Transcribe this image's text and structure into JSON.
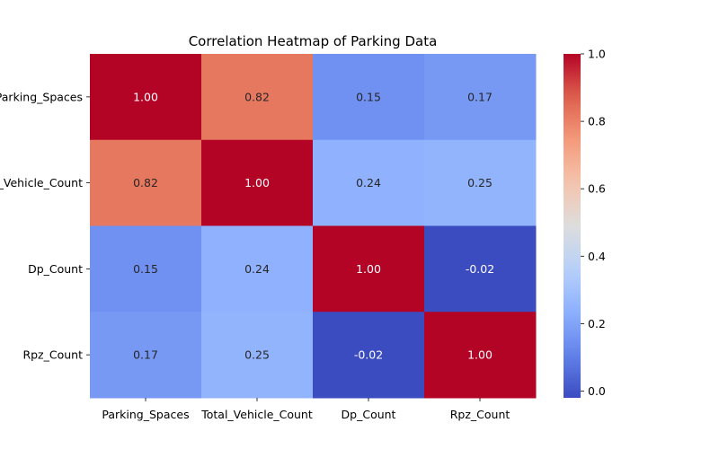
{
  "chart_data": {
    "type": "heatmap",
    "title": "Correlation Heatmap of Parking Data",
    "x_labels": [
      "Parking_Spaces",
      "Total_Vehicle_Count",
      "Dp_Count",
      "Rpz_Count"
    ],
    "y_labels": [
      "Parking_Spaces",
      "Total_Vehicle_Count",
      "Dp_Count",
      "Rpz_Count"
    ],
    "values": [
      [
        1.0,
        0.82,
        0.15,
        0.17
      ],
      [
        0.82,
        1.0,
        0.24,
        0.25
      ],
      [
        0.15,
        0.24,
        1.0,
        -0.02
      ],
      [
        0.17,
        0.25,
        -0.02,
        1.0
      ]
    ],
    "value_format": "2f",
    "colormap": "coolwarm",
    "colorbar": {
      "range": [
        -0.02,
        1.0
      ],
      "ticks": [
        0.0,
        0.2,
        0.4,
        0.6,
        0.8,
        1.0
      ],
      "tick_labels": [
        "0.0",
        "0.2",
        "0.4",
        "0.6",
        "0.8",
        "1.0"
      ]
    },
    "cell_text_colors": {
      "dark_background": "#ffffff",
      "light_background": "#262626"
    }
  }
}
